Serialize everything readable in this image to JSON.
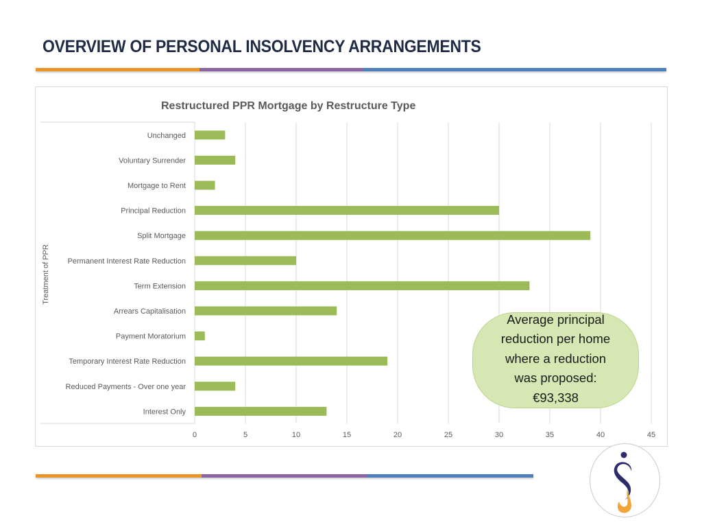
{
  "header": {
    "title": "OVERVIEW OF PERSONAL INSOLVENCY ARRANGEMENTS"
  },
  "divider_colors": [
    "#e8962a",
    "#8c65a3",
    "#4f7fbd"
  ],
  "chart_data": {
    "type": "bar",
    "orientation": "horizontal",
    "title": "Restructured PPR Mortgage by Restructure Type",
    "xlabel": "",
    "ylabel": "Treatment of PPR",
    "categories": [
      "Unchanged",
      "Voluntary Surrender",
      "Mortgage to Rent",
      "Principal Reduction",
      "Split Mortgage",
      "Permanent Interest Rate Reduction",
      "Term Extension",
      "Arrears Capitalisation",
      "Payment Moratorium",
      "Temporary Interest Rate Reduction",
      "Reduced Payments - Over one year",
      "Interest Only"
    ],
    "values": [
      3,
      4,
      2,
      30,
      39,
      10,
      33,
      14,
      1,
      19,
      4,
      13
    ],
    "xlim": [
      0,
      45
    ],
    "xticks": [
      0,
      5,
      10,
      15,
      20,
      25,
      30,
      35,
      40,
      45
    ],
    "grid": "vertical",
    "legend": "none",
    "bar_color": "#9bbb59"
  },
  "callout": {
    "lines": [
      "Average principal",
      "reduction per home",
      "where a reduction",
      "was proposed:",
      "€93,338"
    ]
  },
  "logo": {
    "name": "organisation-logo",
    "colors": [
      "#2b2c6e",
      "#f2a33a"
    ]
  }
}
